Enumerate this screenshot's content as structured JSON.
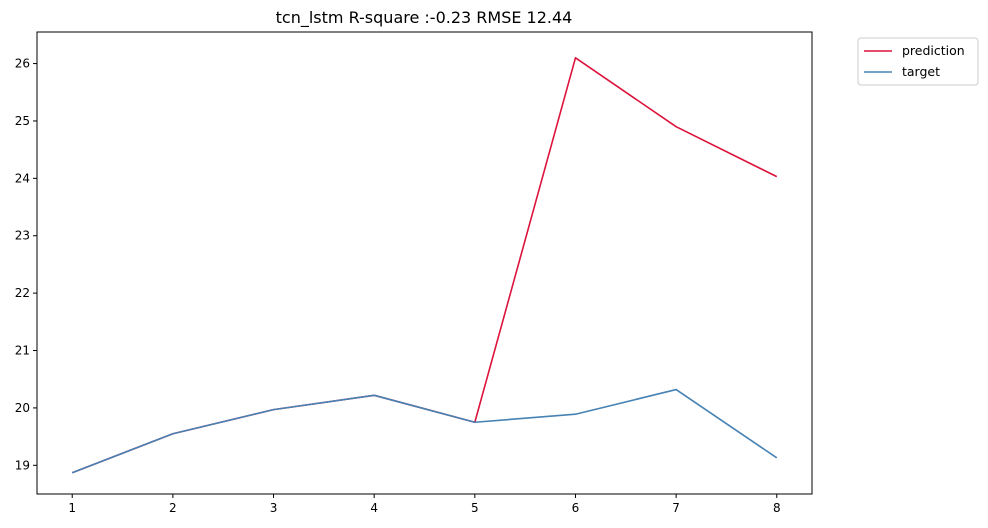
{
  "chart_data": {
    "type": "line",
    "title": "tcn_lstm R-square :-0.23 RMSE 12.44",
    "xlabel": "",
    "ylabel": "",
    "x": [
      1,
      2,
      3,
      4,
      5,
      6,
      7,
      8
    ],
    "xticks": [
      "1",
      "2",
      "3",
      "4",
      "5",
      "6",
      "7",
      "8"
    ],
    "yticks": [
      "19",
      "20",
      "21",
      "22",
      "23",
      "24",
      "25",
      "26"
    ],
    "xlim": [
      0.65,
      8.35
    ],
    "ylim": [
      18.5,
      26.55
    ],
    "grid": false,
    "legend_position": "upper right, outside plot",
    "series": [
      {
        "name": "prediction",
        "color": "#dc143c",
        "values": [
          18.87,
          19.55,
          19.97,
          20.22,
          19.75,
          26.1,
          24.9,
          24.03
        ]
      },
      {
        "name": "target",
        "color": "#4682b4",
        "values": [
          18.87,
          19.55,
          19.97,
          20.22,
          19.75,
          19.89,
          20.32,
          19.13
        ]
      }
    ]
  }
}
